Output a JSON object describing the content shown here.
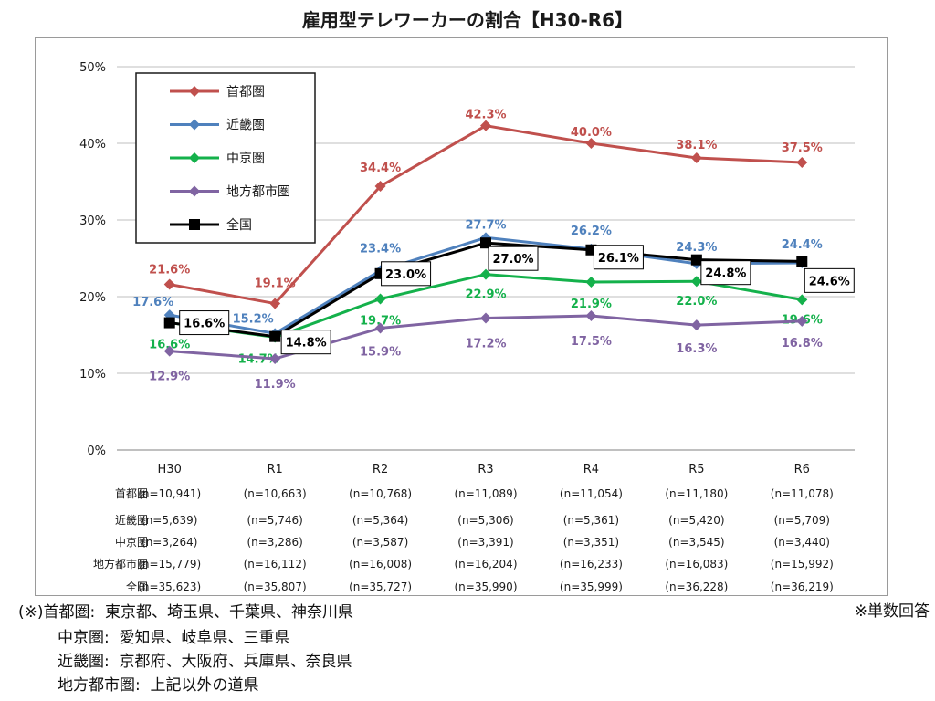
{
  "chart_data": {
    "type": "line",
    "title": "雇用型テレワーカーの割合【H30-R6】",
    "categories": [
      "H30",
      "R1",
      "R2",
      "R3",
      "R4",
      "R5",
      "R6"
    ],
    "ylim": [
      0,
      50
    ],
    "yticks": [
      "0%",
      "10%",
      "20%",
      "30%",
      "40%",
      "50%"
    ],
    "legend_position": "top-left",
    "grid": true,
    "series": [
      {
        "name": "首都圏",
        "color": "#c0504d",
        "marker": "diamond",
        "values": [
          21.6,
          19.1,
          34.4,
          42.3,
          40.0,
          38.1,
          37.5
        ],
        "labels": [
          "21.6%",
          "19.1%",
          "34.4%",
          "42.3%",
          "40.0%",
          "38.1%",
          "37.5%"
        ],
        "n": [
          "(n=10,941)",
          "(n=10,663)",
          "(n=10,768)",
          "(n=11,089)",
          "(n=11,054)",
          "(n=11,180)",
          "(n=11,078)"
        ]
      },
      {
        "name": "近畿圏",
        "color": "#4f81bd",
        "marker": "diamond",
        "values": [
          17.6,
          15.2,
          23.4,
          27.7,
          26.2,
          24.3,
          24.4
        ],
        "labels": [
          "17.6%",
          "15.2%",
          "23.4%",
          "27.7%",
          "26.2%",
          "24.3%",
          "24.4%"
        ],
        "n": [
          "(n=5,639)",
          "(n=5,746)",
          "(n=5,364)",
          "(n=5,306)",
          "(n=5,361)",
          "(n=5,420)",
          "(n=5,709)"
        ]
      },
      {
        "name": "中京圏",
        "color": "#14b14b",
        "marker": "diamond",
        "values": [
          16.6,
          14.7,
          19.7,
          22.9,
          21.9,
          22.0,
          19.6
        ],
        "labels": [
          "16.6%",
          "14.7%",
          "19.7%",
          "22.9%",
          "21.9%",
          "22.0%",
          "19.6%"
        ],
        "n": [
          "(n=3,264)",
          "(n=3,286)",
          "(n=3,587)",
          "(n=3,391)",
          "(n=3,351)",
          "(n=3,545)",
          "(n=3,440)"
        ]
      },
      {
        "name": "地方都市圏",
        "color": "#8064a2",
        "marker": "diamond",
        "values": [
          12.9,
          11.9,
          15.9,
          17.2,
          17.5,
          16.3,
          16.8
        ],
        "labels": [
          "12.9%",
          "11.9%",
          "15.9%",
          "17.2%",
          "17.5%",
          "16.3%",
          "16.8%"
        ],
        "n": [
          "(n=15,779)",
          "(n=16,112)",
          "(n=16,008)",
          "(n=16,204)",
          "(n=16,233)",
          "(n=16,083)",
          "(n=15,992)"
        ]
      },
      {
        "name": "全国",
        "color": "#000000",
        "marker": "square",
        "values": [
          16.6,
          14.8,
          23.0,
          27.0,
          26.1,
          24.8,
          24.6
        ],
        "labels": [
          "16.6%",
          "14.8%",
          "23.0%",
          "27.0%",
          "26.1%",
          "24.8%",
          "24.6%"
        ],
        "n": [
          "(n=35,623)",
          "(n=35,807)",
          "(n=35,727)",
          "(n=35,990)",
          "(n=35,999)",
          "(n=36,228)",
          "(n=36,219)"
        ]
      }
    ]
  },
  "notes": {
    "line1": "(※)首都圏:  東京都、埼玉県、千葉県、神奈川県",
    "line2": "中京圏:  愛知県、岐阜県、三重県",
    "line3": "近畿圏:  京都府、大阪府、兵庫県、奈良県",
    "line4": "地方都市圏:  上記以外の道県",
    "right": "※単数回答"
  }
}
